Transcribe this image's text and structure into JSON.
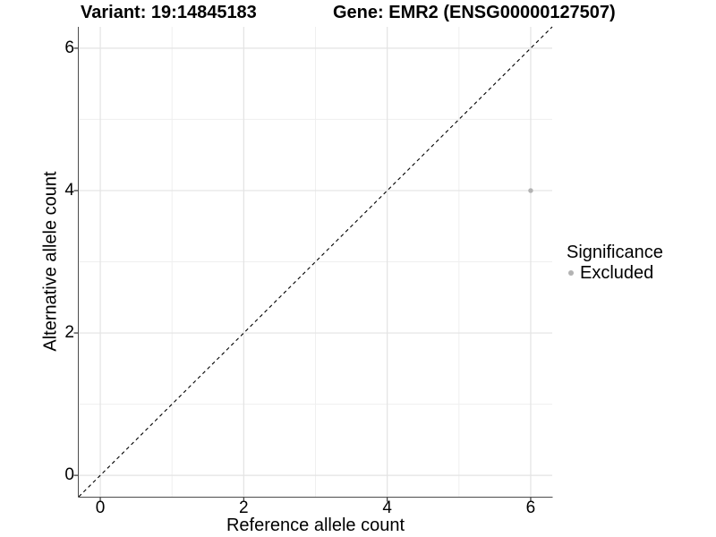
{
  "chart_data": {
    "type": "scatter",
    "title_left": "Variant: 19:14845183",
    "title_right": "Gene: EMR2 (ENSG00000127507)",
    "xlabel": "Reference allele count",
    "ylabel": "Alternative allele count",
    "xlim": [
      -0.3,
      6.3
    ],
    "ylim": [
      -0.3,
      6.3
    ],
    "x_major_ticks": [
      0,
      2,
      4,
      6
    ],
    "y_major_ticks": [
      0,
      2,
      4,
      6
    ],
    "x_minor_ticks": [
      1,
      3,
      5
    ],
    "y_minor_ticks": [
      1,
      3,
      5
    ],
    "grid": true,
    "identity_line": {
      "style": "dashed",
      "color": "#000000"
    },
    "series": [
      {
        "name": "Excluded",
        "color": "#b3b3b3",
        "points": [
          {
            "x": 6,
            "y": 4
          }
        ]
      }
    ],
    "legend": {
      "title": "Significance",
      "position": "right",
      "entries": [
        {
          "label": "Excluded",
          "color": "#b3b3b3"
        }
      ]
    }
  },
  "colors": {
    "background": "#ffffff",
    "axis_line": "#4d4d4d",
    "tick_mark": "#333333",
    "grid_major": "#e3e3e3",
    "grid_minor": "#efefef",
    "text": "#000000"
  }
}
